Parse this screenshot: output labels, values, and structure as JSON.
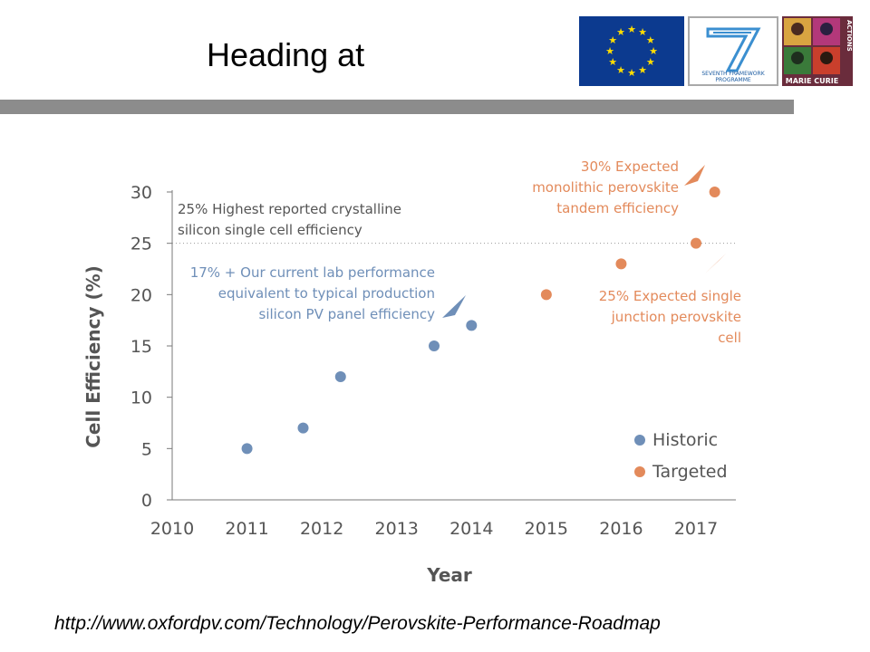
{
  "slide": {
    "heading": "Heading at",
    "source_url": "http://www.oxfordpv.com/Technology/Perovskite-Performance-Roadmap"
  },
  "logos": {
    "fp7_line1": "SEVENTH FRAMEWORK",
    "fp7_line2": "PROGRAMME",
    "mc_label": "MARIE CURIE",
    "mc_side_label": "ACTIONS"
  },
  "colors": {
    "historic": "#6f8fb8",
    "targeted": "#e38a5b",
    "annotation_gray": "#555555",
    "axis": "#7a7a7a",
    "eu_blue": "#0c3a8f",
    "eu_star": "#ffdd00",
    "header_bar": "#8c8c8c"
  },
  "chart_data": {
    "type": "scatter",
    "xlabel": "Year",
    "ylabel": "Cell Efficiency (%)",
    "xlim": [
      2010,
      2017.5
    ],
    "ylim": [
      0,
      30
    ],
    "xticks": [
      "2010",
      "2011",
      "2012",
      "2013",
      "2014",
      "2015",
      "2016",
      "2017"
    ],
    "yticks": [
      "0",
      "5",
      "10",
      "15",
      "20",
      "25",
      "30"
    ],
    "grid": false,
    "reference_line": {
      "y": 25,
      "style": "dotted"
    },
    "legend": {
      "placement": "bottom-right",
      "entries": [
        "Historic",
        "Targeted"
      ]
    },
    "series": [
      {
        "name": "Historic",
        "points": [
          [
            2011,
            5
          ],
          [
            2011.75,
            7
          ],
          [
            2012.25,
            12
          ],
          [
            2013.5,
            15
          ],
          [
            2014,
            17
          ]
        ]
      },
      {
        "name": "Targeted",
        "points": [
          [
            2015,
            20
          ],
          [
            2016,
            23
          ],
          [
            2017,
            25
          ],
          [
            2017.25,
            30
          ]
        ]
      }
    ],
    "annotations": [
      {
        "color": "gray",
        "lines": [
          "25% Highest reported crystalline",
          "silicon single cell efficiency"
        ]
      },
      {
        "color": "blue",
        "lines": [
          "17% + Our current lab performance",
          "equivalent to typical production",
          "silicon PV panel efficiency"
        ]
      },
      {
        "color": "orange",
        "lines": [
          "30% Expected",
          "monolithic perovskite",
          "tandem efficiency"
        ]
      },
      {
        "color": "orange",
        "lines": [
          "25% Expected single",
          "junction perovskite",
          "cell"
        ]
      }
    ]
  }
}
